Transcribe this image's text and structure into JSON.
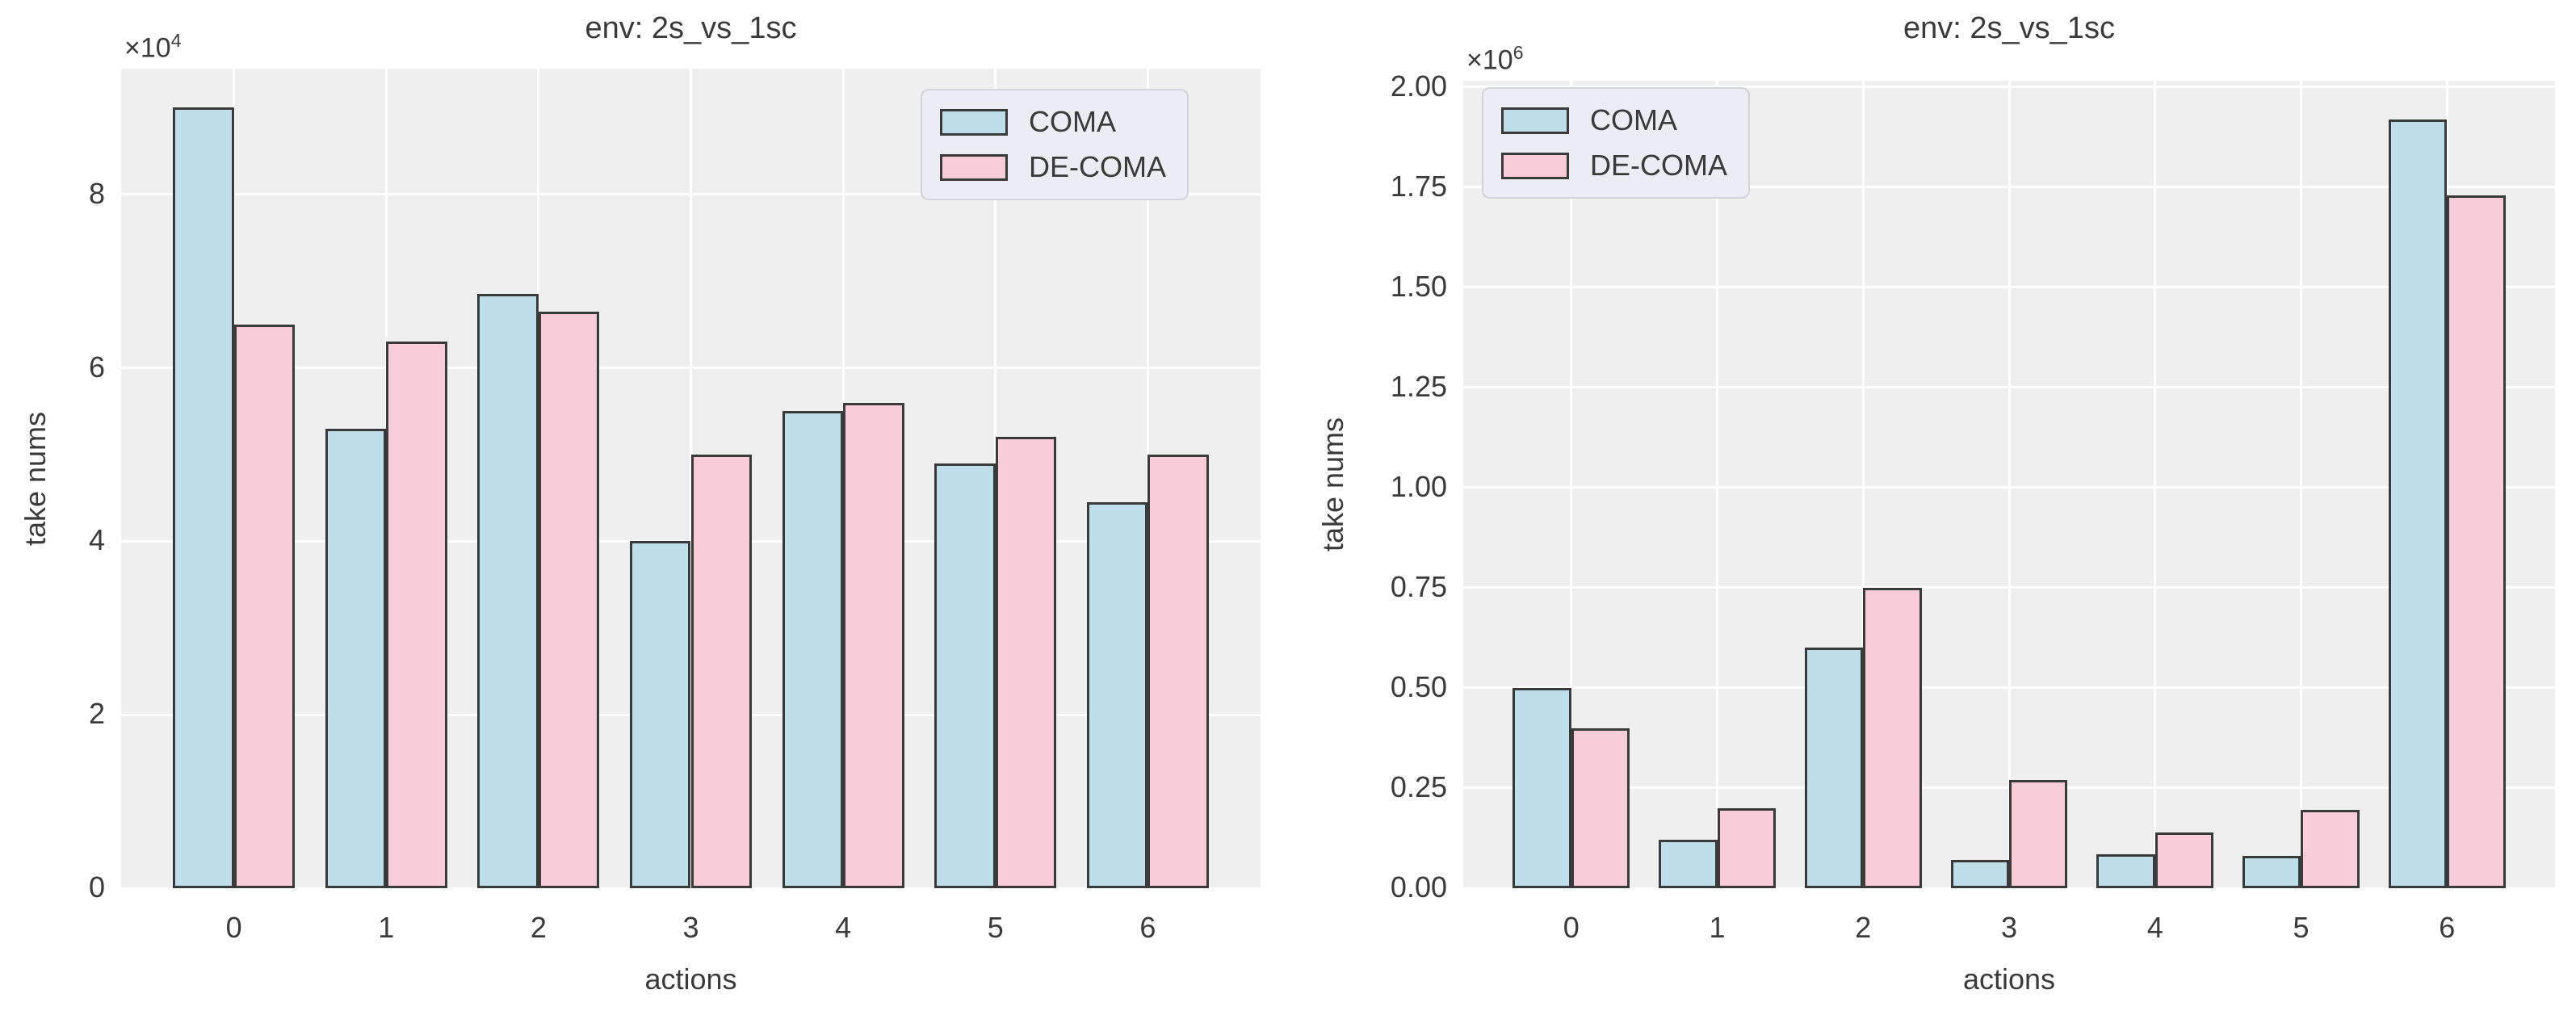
{
  "style": {
    "figure_bg": "#ffffff",
    "plot_bg": "#EFEFEF",
    "grid_color": "#ffffff",
    "bar_edge": "#3a3a3a",
    "text_color": "#3a3a3a",
    "legend_bg": "#ECECF4",
    "legend_border": "#D2D2DC"
  },
  "chart_data": [
    {
      "type": "bar",
      "title": "env: 2s_vs_1sc",
      "offset_base": "×10",
      "offset_exp": "4",
      "xlabel": "actions",
      "ylabel": "take nums",
      "categories": [
        "0",
        "1",
        "2",
        "3",
        "4",
        "5",
        "6"
      ],
      "series": [
        {
          "name": "COMA",
          "color": "#BEDFEA",
          "values": [
            9.0,
            5.3,
            6.85,
            4.0,
            5.5,
            4.9,
            4.45
          ]
        },
        {
          "name": "DE-COMA",
          "color": "#F9CDD8",
          "values": [
            6.5,
            6.3,
            6.65,
            5.0,
            5.6,
            5.2,
            5.0
          ]
        }
      ],
      "ylim": [
        0,
        9.45
      ],
      "xlim": [
        -0.74,
        6.74
      ],
      "yticks": [
        0,
        2,
        4,
        6,
        8
      ],
      "ytick_labels": [
        "0",
        "2",
        "4",
        "6",
        "8"
      ],
      "grid": true,
      "legend_loc": "upper right"
    },
    {
      "type": "bar",
      "title": "env: 2s_vs_1sc",
      "offset_base": "×10",
      "offset_exp": "6",
      "xlabel": "actions",
      "ylabel": "take nums",
      "categories": [
        "0",
        "1",
        "2",
        "3",
        "4",
        "5",
        "6"
      ],
      "series": [
        {
          "name": "COMA",
          "color": "#BEDFEA",
          "values": [
            0.5,
            0.12,
            0.6,
            0.07,
            0.085,
            0.08,
            1.92
          ]
        },
        {
          "name": "DE-COMA",
          "color": "#F9CDD8",
          "values": [
            0.4,
            0.2,
            0.75,
            0.27,
            0.14,
            0.195,
            1.73
          ]
        }
      ],
      "ylim": [
        0,
        2.016
      ],
      "xlim": [
        -0.74,
        6.74
      ],
      "yticks": [
        0,
        0.25,
        0.5,
        0.75,
        1.0,
        1.25,
        1.5,
        1.75,
        2.0
      ],
      "ytick_labels": [
        "0.00",
        "0.25",
        "0.50",
        "0.75",
        "1.00",
        "1.25",
        "1.50",
        "1.75",
        "2.00"
      ],
      "grid": true,
      "legend_loc": "upper left"
    }
  ]
}
